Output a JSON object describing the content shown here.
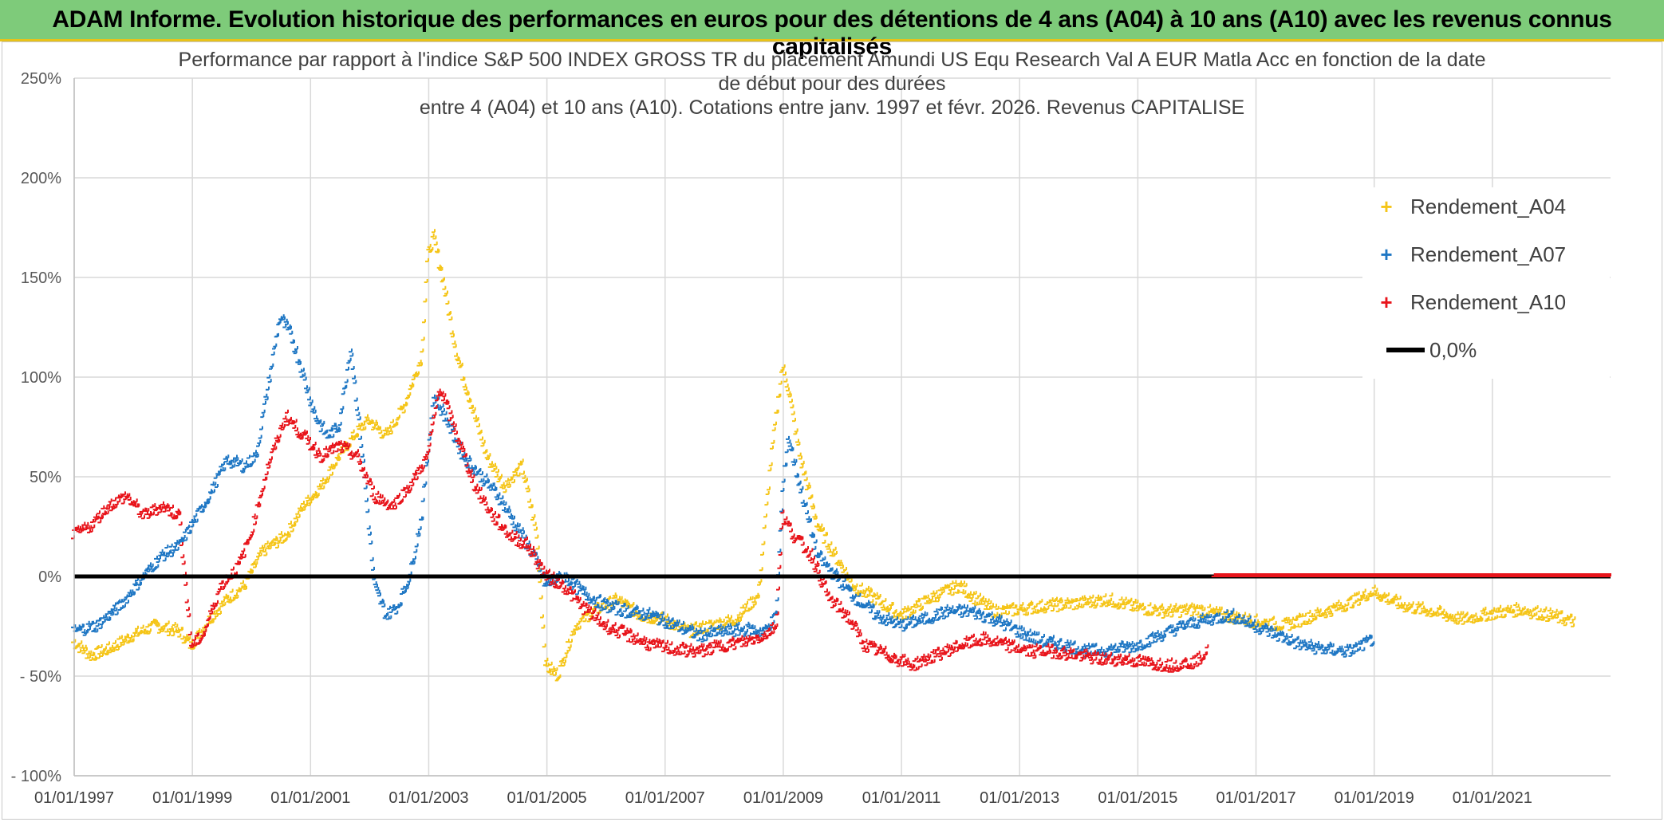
{
  "banner": {
    "title": "ADAM Informe. Evolution historique des performances en euros pour des détentions de 4 ans (A04) à 10 ans (A10) avec les revenus connus capitalisés"
  },
  "colors": {
    "banner_bg": "#7ecb7a",
    "banner_border": "#e8c21a",
    "A04": "#f5c518",
    "A07": "#1f77c4",
    "A10": "#e8141b",
    "zero": "#000000",
    "grid": "#d9d9d9"
  },
  "chart_data": {
    "type": "scatter",
    "title_lines": [
      "Performance par rapport à l'indice S&P 500 INDEX GROSS TR  du placement Amundi US Equ Research Val A EUR Matla Acc en fonction de la date",
      "de début pour des durées",
      "entre 4 (A04) et 10 ans (A10). Cotations entre janv. 1997 et févr. 2026. Revenus CAPITALISE"
    ],
    "x_ticks": [
      "01/01/1997",
      "01/01/1999",
      "01/01/2001",
      "01/01/2003",
      "01/01/2005",
      "01/01/2007",
      "01/01/2009",
      "01/01/2011",
      "01/01/2013",
      "01/01/2015",
      "01/01/2017",
      "01/01/2019",
      "01/01/2021"
    ],
    "xlim": [
      "01/01/1997",
      "31/12/2022"
    ],
    "y_ticks": [
      "250%",
      "200%",
      "150%",
      "100%",
      "50%",
      "0%",
      "- 50%",
      "- 100%"
    ],
    "ylim": [
      -100,
      250
    ],
    "y_unit": "%",
    "grid": true,
    "legend_position": "top-right",
    "legend": [
      {
        "label": "Rendement_A04",
        "marker": "+",
        "color_key": "A04"
      },
      {
        "label": "Rendement_A07",
        "marker": "+",
        "color_key": "A07"
      },
      {
        "label": "Rendement_A10",
        "marker": "+",
        "color_key": "A10"
      },
      {
        "label": "0,0%",
        "marker": "line",
        "color_key": "zero"
      }
    ],
    "series": [
      {
        "name": "Rendement_A04",
        "x": [
          1997.0,
          1997.3,
          1997.6,
          1998.0,
          1998.4,
          1998.8,
          1999.0,
          1999.3,
          1999.6,
          1999.9,
          2000.2,
          2000.6,
          2000.9,
          2001.2,
          2001.5,
          2001.8,
          2002.0,
          2002.3,
          2002.6,
          2002.9,
          2003.0,
          2003.1,
          2003.25,
          2003.5,
          2003.8,
          2004.0,
          2004.3,
          2004.6,
          2004.85,
          2005.0,
          2005.2,
          2005.5,
          2005.8,
          2006.2,
          2006.6,
          2007.0,
          2007.4,
          2007.8,
          2008.2,
          2008.6,
          2008.8,
          2009.0,
          2009.1,
          2009.3,
          2009.6,
          2009.9,
          2010.2,
          2010.6,
          2011.0,
          2011.3,
          2011.6,
          2012.0,
          2012.3,
          2012.6,
          2013.0,
          2013.5,
          2014.0,
          2014.5,
          2015.0,
          2015.5,
          2016.0,
          2016.5,
          2017.0,
          2017.5,
          2018.0,
          2018.5,
          2019.0,
          2019.5,
          2020.0,
          2020.5,
          2021.0,
          2021.5,
          2022.0,
          2022.4
        ],
        "y": [
          -33,
          -40,
          -37,
          -30,
          -25,
          -28,
          -35,
          -22,
          -12,
          -5,
          12,
          20,
          35,
          45,
          60,
          72,
          78,
          70,
          85,
          110,
          160,
          170,
          150,
          110,
          80,
          60,
          45,
          55,
          20,
          -45,
          -50,
          -25,
          -18,
          -12,
          -20,
          -22,
          -28,
          -25,
          -22,
          -10,
          55,
          105,
          95,
          60,
          25,
          10,
          -5,
          -12,
          -20,
          -15,
          -10,
          -5,
          -12,
          -18,
          -17,
          -15,
          -14,
          -12,
          -16,
          -18,
          -17,
          -20,
          -23,
          -25,
          -20,
          -15,
          -8,
          -15,
          -18,
          -22,
          -19,
          -17,
          -20,
          -23
        ]
      },
      {
        "name": "Rendement_A07",
        "x": [
          1997.0,
          1997.4,
          1997.8,
          1998.2,
          1998.5,
          1998.8,
          1999.0,
          1999.3,
          1999.6,
          1999.9,
          2000.1,
          2000.3,
          2000.5,
          2000.7,
          2000.9,
          2001.1,
          2001.3,
          2001.5,
          2001.7,
          2001.9,
          2002.1,
          2002.3,
          2002.5,
          2002.7,
          2002.9,
          2003.1,
          2003.3,
          2003.6,
          2003.9,
          2004.2,
          2004.5,
          2004.8,
          2005.0,
          2005.3,
          2005.6,
          2006.0,
          2006.4,
          2006.8,
          2007.2,
          2007.6,
          2008.0,
          2008.4,
          2008.7,
          2008.9,
          2009.0,
          2009.1,
          2009.3,
          2009.6,
          2009.9,
          2010.2,
          2010.6,
          2011.0,
          2011.4,
          2011.8,
          2012.2,
          2012.6,
          2013.0,
          2013.4,
          2013.8,
          2014.2,
          2014.6,
          2015.0,
          2015.4,
          2015.8,
          2016.2,
          2016.6,
          2017.0,
          2017.4,
          2017.8,
          2018.2,
          2018.6,
          2019.0
        ],
        "y": [
          -28,
          -25,
          -15,
          0,
          10,
          15,
          25,
          40,
          58,
          55,
          60,
          95,
          130,
          120,
          100,
          80,
          70,
          75,
          115,
          60,
          -5,
          -20,
          -15,
          0,
          30,
          90,
          80,
          60,
          50,
          40,
          25,
          10,
          -5,
          0,
          -8,
          -15,
          -18,
          -20,
          -25,
          -30,
          -28,
          -27,
          -28,
          -20,
          40,
          70,
          45,
          10,
          0,
          -10,
          -20,
          -25,
          -22,
          -18,
          -18,
          -22,
          -28,
          -33,
          -35,
          -38,
          -37,
          -35,
          -30,
          -25,
          -22,
          -20,
          -25,
          -30,
          -35,
          -37,
          -38,
          -32
        ]
      },
      {
        "name": "Rendement_A10",
        "x": [
          1997.0,
          1997.3,
          1997.6,
          1997.9,
          1998.2,
          1998.5,
          1998.8,
          1999.0,
          1999.2,
          1999.5,
          1999.8,
          2000.0,
          2000.3,
          2000.6,
          2000.9,
          2001.2,
          2001.5,
          2001.8,
          2002.1,
          2002.4,
          2002.7,
          2003.0,
          2003.2,
          2003.5,
          2003.8,
          2004.1,
          2004.4,
          2004.7,
          2005.0,
          2005.3,
          2005.6,
          2006.0,
          2006.4,
          2006.8,
          2007.2,
          2007.6,
          2008.0,
          2008.4,
          2008.7,
          2008.9,
          2009.0,
          2009.2,
          2009.5,
          2009.8,
          2010.1,
          2010.4,
          2010.8,
          2011.2,
          2011.6,
          2012.0,
          2012.4,
          2012.8,
          2013.2,
          2013.6,
          2014.0,
          2014.4,
          2014.8,
          2015.2,
          2015.6,
          2016.0,
          2016.2
        ],
        "y": [
          20,
          25,
          35,
          40,
          30,
          35,
          30,
          -35,
          -30,
          -5,
          5,
          20,
          55,
          80,
          70,
          60,
          65,
          60,
          40,
          35,
          45,
          60,
          95,
          70,
          45,
          30,
          20,
          15,
          0,
          -5,
          -15,
          -25,
          -30,
          -35,
          -37,
          -38,
          -35,
          -33,
          -30,
          -25,
          30,
          20,
          10,
          -12,
          -20,
          -35,
          -40,
          -45,
          -40,
          -35,
          -32,
          -35,
          -38,
          -38,
          -40,
          -42,
          -42,
          -44,
          -45,
          -43,
          -38
        ]
      },
      {
        "name": "0,0%",
        "x": [
          1997.0,
          2023.0
        ],
        "y": [
          0,
          0
        ]
      }
    ]
  }
}
